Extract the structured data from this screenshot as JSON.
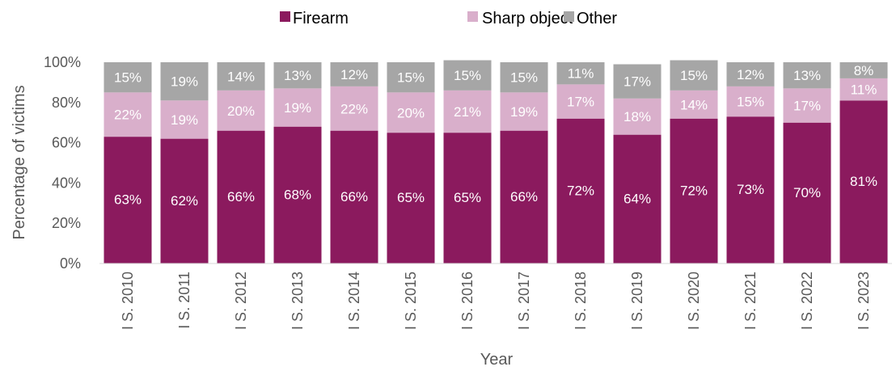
{
  "chart_data": {
    "type": "bar",
    "stacked": true,
    "categories": [
      "I S. 2010",
      "I S. 2011",
      "I S. 2012",
      "I S. 2013",
      "I S. 2014",
      "I S. 2015",
      "I S. 2016",
      "I S. 2017",
      "I S. 2018",
      "I S. 2019",
      "I S. 2020",
      "I S. 2021",
      "I S. 2022",
      "I S. 2023"
    ],
    "series": [
      {
        "name": "Firearm",
        "color": "#8B1A5E",
        "values": [
          63,
          62,
          66,
          68,
          66,
          65,
          65,
          66,
          72,
          64,
          72,
          73,
          70,
          81
        ],
        "labels": [
          "63%",
          "62%",
          "66%",
          "68%",
          "66%",
          "65%",
          "65%",
          "66%",
          "72%",
          "64%",
          "72%",
          "73%",
          "70%",
          "81%"
        ]
      },
      {
        "name": "Sharp object",
        "color": "#D9AFCB",
        "values": [
          22,
          19,
          20,
          19,
          22,
          20,
          21,
          19,
          17,
          18,
          14,
          15,
          17,
          11
        ],
        "labels": [
          "22%",
          "19%",
          "20%",
          "19%",
          "22%",
          "20%",
          "21%",
          "19%",
          "17%",
          "18%",
          "14%",
          "15%",
          "17%",
          "11%"
        ]
      },
      {
        "name": "Other",
        "color": "#A6A6A6",
        "values": [
          15,
          19,
          14,
          13,
          12,
          15,
          15,
          15,
          11,
          17,
          15,
          12,
          13,
          8
        ],
        "labels": [
          "15%",
          "19%",
          "14%",
          "13%",
          "12%",
          "15%",
          "15%",
          "15%",
          "11%",
          "17%",
          "15%",
          "12%",
          "13%",
          "8%"
        ]
      }
    ],
    "xlabel": "Year",
    "ylabel": "Percentage of victims",
    "ylim": [
      0,
      100
    ],
    "yticks": [
      0,
      20,
      40,
      60,
      80,
      100
    ],
    "ytick_labels": [
      "0%",
      "20%",
      "40%",
      "60%",
      "80%",
      "100%"
    ],
    "grid": false,
    "legend_position": "top"
  }
}
